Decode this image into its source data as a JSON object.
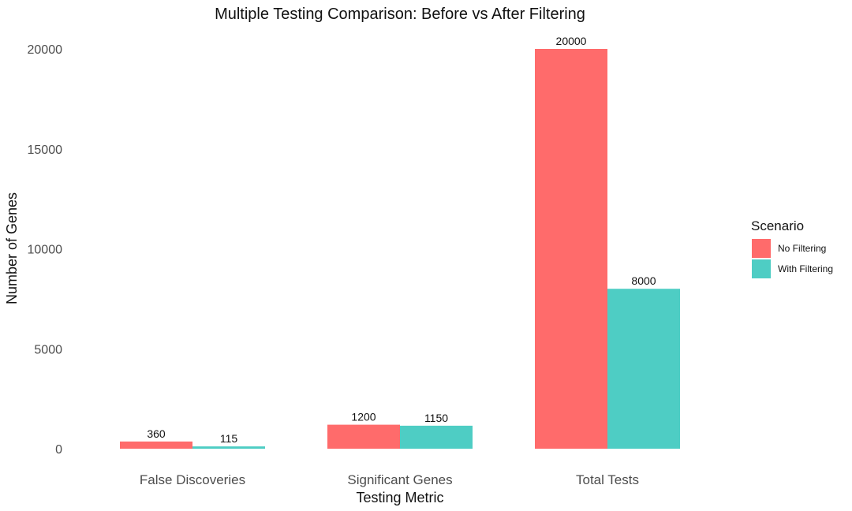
{
  "chart_data": {
    "type": "bar",
    "title": "Multiple Testing Comparison: Before vs After Filtering",
    "xlabel": "Testing Metric",
    "ylabel": "Number of Genes",
    "categories": [
      "False Discoveries",
      "Significant Genes",
      "Total Tests"
    ],
    "series": [
      {
        "name": "No Filtering",
        "color": "#FF6B6B",
        "values": [
          360,
          1200,
          20000
        ]
      },
      {
        "name": "With Filtering",
        "color": "#4ECDC4",
        "values": [
          115,
          1150,
          8000
        ]
      }
    ],
    "ylim": [
      0,
      20000
    ],
    "yticks": [
      0,
      5000,
      10000,
      15000,
      20000
    ],
    "grid": false,
    "legend": {
      "title": "Scenario",
      "position": "right"
    },
    "data_labels": true
  }
}
